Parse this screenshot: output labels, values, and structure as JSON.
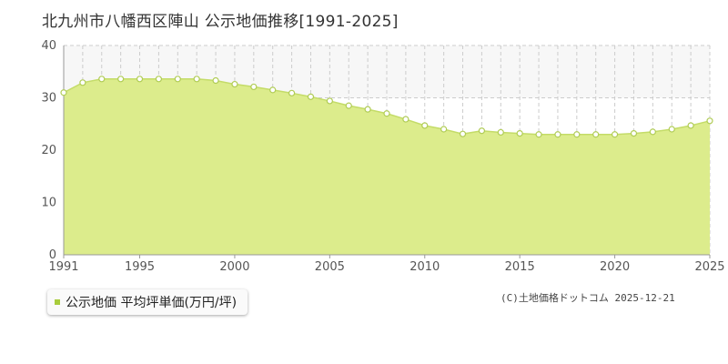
{
  "title": "北九州市八幡西区陣山 公示地価推移[1991-2025]",
  "legend": {
    "label": "公示地価 平均坪単価(万円/坪)"
  },
  "credit": "(C)土地価格ドットコム 2025-12-21",
  "colors": {
    "area": "#dcec8c",
    "line": "#c4dc68",
    "marker_fill": "#ffffff",
    "marker_stroke": "#b0cc55",
    "legend_swatch": "#a8cc3c",
    "band": "#f7f7f7",
    "grid": "#cccccc",
    "axis": "#999999"
  },
  "chart_data": {
    "type": "area",
    "title": "北九州市八幡西区陣山 公示地価推移[1991-2025]",
    "xlabel": "",
    "ylabel": "",
    "xlim": [
      1991,
      2025
    ],
    "ylim": [
      0,
      40
    ],
    "x_ticks": [
      "1991",
      "1995",
      "2000",
      "2005",
      "2010",
      "2015",
      "2020",
      "2025"
    ],
    "y_ticks": [
      "0",
      "10",
      "20",
      "30",
      "40"
    ],
    "grid": true,
    "series": [
      {
        "name": "公示地価 平均坪単価(万円/坪)",
        "x": [
          1991,
          1992,
          1993,
          1994,
          1995,
          1996,
          1997,
          1998,
          1999,
          2000,
          2001,
          2002,
          2003,
          2004,
          2005,
          2006,
          2007,
          2008,
          2009,
          2010,
          2011,
          2012,
          2013,
          2014,
          2015,
          2016,
          2017,
          2018,
          2019,
          2020,
          2021,
          2022,
          2023,
          2024,
          2025
        ],
        "values": [
          31.0,
          32.9,
          33.6,
          33.6,
          33.6,
          33.6,
          33.6,
          33.6,
          33.3,
          32.6,
          32.1,
          31.5,
          30.9,
          30.2,
          29.4,
          28.5,
          27.8,
          27.0,
          25.9,
          24.7,
          24.0,
          23.1,
          23.7,
          23.4,
          23.2,
          23.0,
          23.0,
          23.0,
          23.0,
          23.0,
          23.2,
          23.5,
          24.0,
          24.7,
          25.6
        ]
      }
    ]
  }
}
